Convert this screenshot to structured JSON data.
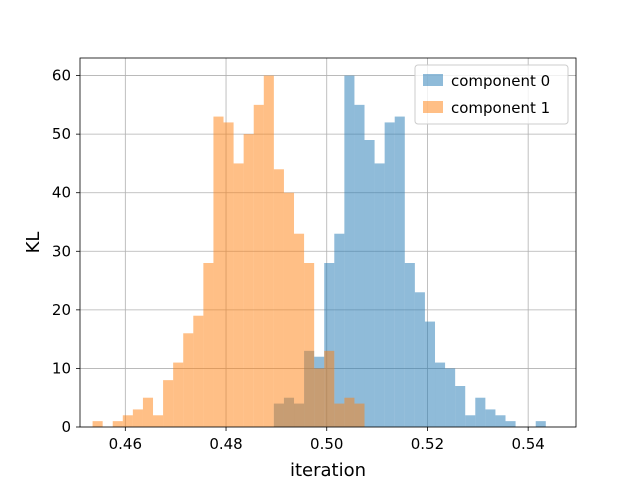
{
  "chart_data": {
    "type": "histogram",
    "xlabel": "iteration",
    "ylabel": "KL",
    "xlim": [
      0.451,
      0.5495
    ],
    "ylim": [
      0,
      63
    ],
    "grid": true,
    "legend_position": "top-right",
    "x_ticks": [
      0.46,
      0.48,
      0.5,
      0.52,
      0.54
    ],
    "x_tick_labels": [
      "0.46",
      "0.48",
      "0.50",
      "0.52",
      "0.54"
    ],
    "y_ticks": [
      0,
      10,
      20,
      30,
      40,
      50,
      60
    ],
    "y_tick_labels": [
      "0",
      "10",
      "20",
      "30",
      "40",
      "50",
      "60"
    ],
    "series": [
      {
        "name": "component 0",
        "color": "#1f77b4",
        "alpha": 0.5,
        "bin_edges": [
          0.4895,
          0.4915,
          0.4935,
          0.4955,
          0.4975,
          0.4995,
          0.5015,
          0.5035,
          0.5055,
          0.5075,
          0.5095,
          0.5115,
          0.5135,
          0.5155,
          0.5175,
          0.5195,
          0.5215,
          0.5235,
          0.5255,
          0.5275,
          0.5295,
          0.5315,
          0.5335,
          0.5355,
          0.5375,
          0.5395,
          0.5415,
          0.5435,
          0.5455,
          0.5475
        ],
        "counts": [
          4,
          5,
          4,
          13,
          12,
          28,
          33,
          60,
          55,
          49,
          45,
          52,
          53,
          28,
          23,
          18,
          11,
          10,
          7,
          2,
          5,
          3,
          2,
          1,
          0,
          0,
          1,
          0,
          0
        ]
      },
      {
        "name": "component 1",
        "color": "#ff7f0e",
        "alpha": 0.5,
        "bin_edges": [
          0.4535,
          0.4555,
          0.4575,
          0.4595,
          0.4615,
          0.4635,
          0.4655,
          0.4675,
          0.4695,
          0.4715,
          0.4735,
          0.4755,
          0.4775,
          0.4795,
          0.4815,
          0.4835,
          0.4855,
          0.4875,
          0.4895,
          0.4915,
          0.4935,
          0.4955,
          0.4975,
          0.4995,
          0.5015,
          0.5035,
          0.5055,
          0.5075,
          0.5095,
          0.5115
        ],
        "counts": [
          1,
          0,
          1,
          2,
          3,
          5,
          2,
          8,
          11,
          16,
          19,
          28,
          53,
          52,
          45,
          50,
          55,
          60,
          44,
          40,
          33,
          28,
          10,
          13,
          4,
          5,
          4,
          0,
          0
        ]
      }
    ]
  }
}
